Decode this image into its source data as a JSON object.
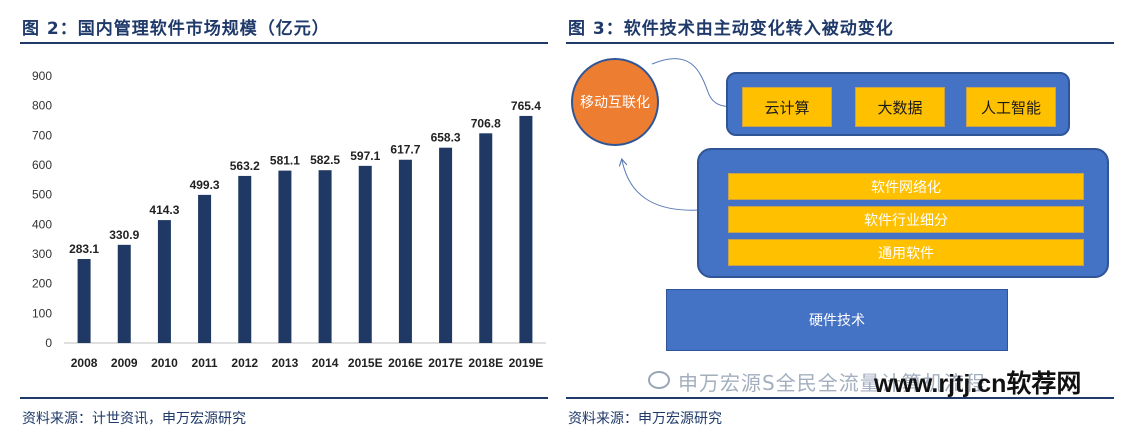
{
  "left_figure": {
    "title": "图 2：国内管理软件市场规模（亿元）",
    "source": "资料来源：计世资讯，申万宏源研究"
  },
  "right_figure": {
    "title": "图 3：软件技术由主动变化转入被动变化",
    "source": "资料来源：申万宏源研究",
    "mobile_internet": "移动互联化",
    "cloud_items": [
      "云计算",
      "大数据",
      "人工智能"
    ],
    "software_strips": [
      "软件网络化",
      "软件行业细分",
      "通用软件"
    ],
    "hardware": "硬件技术"
  },
  "watermark": {
    "text": "申万宏源S全民全流量计算机流程",
    "site": "www.rjtj.cn软荐网"
  },
  "colors": {
    "bar": "#1f3864",
    "title": "#1f3a6a",
    "blue_box": "#4472c4",
    "yellow": "#ffc000",
    "orange": "#ed7d31"
  },
  "chart_data": {
    "type": "bar",
    "categories": [
      "2008",
      "2009",
      "2010",
      "2011",
      "2012",
      "2013",
      "2014",
      "2015E",
      "2016E",
      "2017E",
      "2018E",
      "2019E"
    ],
    "values": [
      283.1,
      330.9,
      414.3,
      499.3,
      563.2,
      581.1,
      582.5,
      597.1,
      617.7,
      658.3,
      706.8,
      765.4
    ],
    "value_labels": [
      "283.1",
      "330.9",
      "414.3",
      "499.3",
      "563.2",
      "581.1",
      "582.5",
      "597.1",
      "617.7",
      "658.3",
      "706.8",
      "765.4"
    ],
    "yticks": [
      "0",
      "100",
      "200",
      "300",
      "400",
      "500",
      "600",
      "700",
      "800",
      "900"
    ],
    "ylim": [
      0,
      900
    ],
    "grid": false,
    "legend": "none"
  }
}
